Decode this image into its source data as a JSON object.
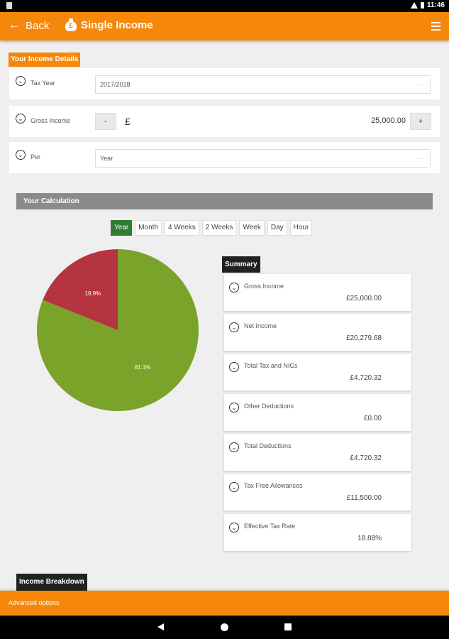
{
  "status_bar": {
    "time": "11:46"
  },
  "app_bar": {
    "back_label": "Back",
    "title": "Single Income",
    "bag_symbol": "£"
  },
  "income_details": {
    "tag": "Your Income Details",
    "tax_year": {
      "label": "Tax Year",
      "value": "2017/2018",
      "dots": "···"
    },
    "gross_income": {
      "label": "Gross Income",
      "minus": "-",
      "currency": "£",
      "value": "25,000.00",
      "plus": "+"
    },
    "per": {
      "label": "Per",
      "value": "Year",
      "dots": "···"
    }
  },
  "calculation": {
    "title": "Your Calculation",
    "periods": [
      "Year",
      "Month",
      "4 Weeks",
      "2 Weeks",
      "Week",
      "Day",
      "Hour"
    ],
    "active_period": "Year"
  },
  "pie": {
    "slices": [
      {
        "label": "81.1%",
        "value": 81.1,
        "color": "#7aa329"
      },
      {
        "label": "18.9%",
        "value": 18.9,
        "color": "#b5343f"
      }
    ]
  },
  "summary": {
    "tag": "Summary",
    "items": [
      {
        "label": "Gross Income",
        "value": "£25,000.00"
      },
      {
        "label": "Net Income",
        "value": "£20,279.68"
      },
      {
        "label": "Total Tax and NICs",
        "value": "£4,720.32"
      },
      {
        "label": "Other Deductions",
        "value": "£0.00"
      },
      {
        "label": "Total Deductions",
        "value": "£4,720.32"
      },
      {
        "label": "Tax Free Allowances",
        "value": "£11,500.00"
      },
      {
        "label": "Effective Tax Rate",
        "value": "18.88%"
      }
    ]
  },
  "income_breakdown": {
    "tag": "Income Breakdown"
  },
  "advanced_options": {
    "label": "Advanced options"
  },
  "colors": {
    "accent": "#f5870a",
    "active_period": "#2f7d32",
    "net": "#7aa329",
    "tax": "#b5343f"
  }
}
